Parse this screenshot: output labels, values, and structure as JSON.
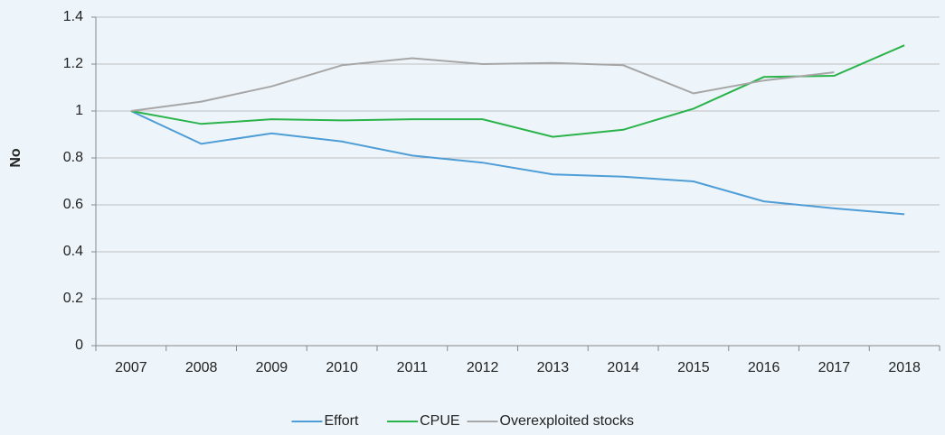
{
  "chart_data": {
    "type": "line",
    "y_label": "No",
    "categories": [
      "2007",
      "2008",
      "2009",
      "2010",
      "2011",
      "2012",
      "2013",
      "2014",
      "2015",
      "2016",
      "2017",
      "2018"
    ],
    "series": [
      {
        "name": "Effort",
        "color": "#4e9dd6",
        "values": [
          1,
          0.86,
          0.905,
          0.87,
          0.81,
          0.78,
          0.73,
          0.72,
          0.7,
          0.615,
          0.585,
          0.56
        ]
      },
      {
        "name": "CPUE",
        "color": "#2ab34b",
        "values": [
          1,
          0.945,
          0.965,
          0.96,
          0.965,
          0.965,
          0.89,
          0.92,
          1.01,
          1.145,
          1.15,
          1.28
        ]
      },
      {
        "name": "Overexploited stocks",
        "color": "#a6a6a6",
        "values": [
          1,
          1.04,
          1.105,
          1.195,
          1.225,
          1.2,
          1.205,
          1.195,
          1.075,
          1.13,
          1.165,
          null
        ]
      }
    ],
    "ylim": [
      0,
      1.4
    ],
    "yticks": [
      0,
      0.2,
      0.4,
      0.6,
      0.8,
      1,
      1.2,
      1.4
    ],
    "grid": true,
    "legend": "bottom"
  }
}
